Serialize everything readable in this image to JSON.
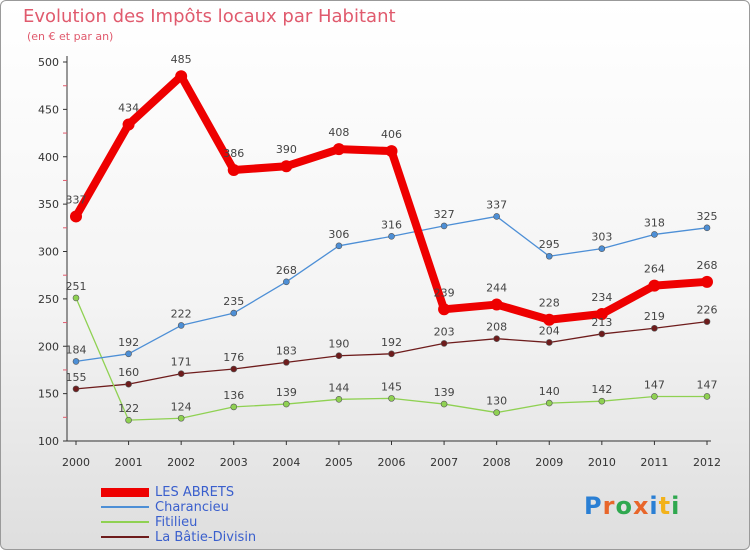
{
  "title": "Evolution des Impôts locaux par Habitant",
  "subtitle": "(en € et par an)",
  "logo": {
    "text": "Proxiti",
    "letter_colors": [
      "#2a7fd4",
      "#e8662a",
      "#2fa84f",
      "#e8662a",
      "#2a7fd4",
      "#f2b21b",
      "#2fa84f"
    ]
  },
  "chart_data": {
    "type": "line",
    "x": [
      "2000",
      "2001",
      "2002",
      "2003",
      "2004",
      "2005",
      "2006",
      "2007",
      "2008",
      "2009",
      "2010",
      "2011",
      "2012"
    ],
    "ylim": [
      100,
      500
    ],
    "yticks": [
      100,
      150,
      200,
      250,
      300,
      350,
      400,
      450,
      500
    ],
    "grid": false,
    "legend_position": "bottom-left",
    "series": [
      {
        "name": "LES ABRETS",
        "color": "#ee0000",
        "values": [
          337,
          434,
          485,
          386,
          390,
          408,
          406,
          239,
          244,
          228,
          234,
          264,
          268
        ]
      },
      {
        "name": "Charancieu",
        "color": "#4d8fd6",
        "values": [
          184,
          192,
          222,
          235,
          268,
          306,
          316,
          327,
          337,
          295,
          303,
          318,
          325
        ]
      },
      {
        "name": "Fitilieu",
        "color": "#8fd152",
        "values": [
          251,
          122,
          124,
          136,
          139,
          144,
          145,
          139,
          130,
          140,
          142,
          147,
          147
        ]
      },
      {
        "name": "La Bâtie-Divisin",
        "color": "#6e1c1c",
        "values": [
          155,
          160,
          171,
          176,
          183,
          190,
          192,
          203,
          208,
          204,
          213,
          219,
          226
        ]
      }
    ]
  }
}
